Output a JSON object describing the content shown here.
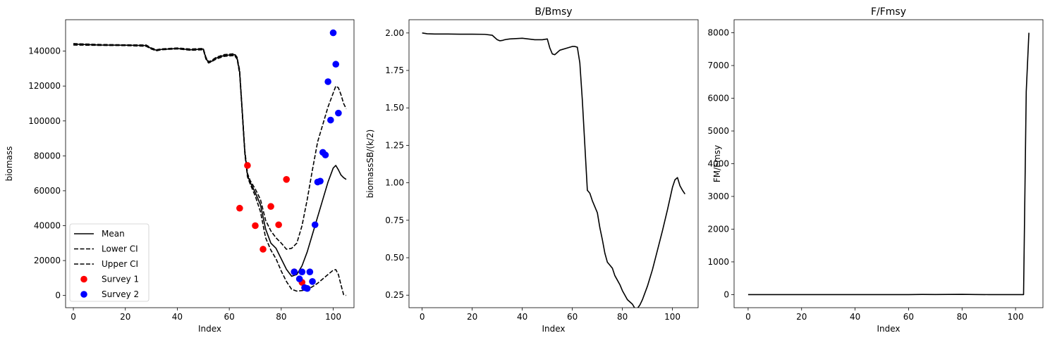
{
  "chart_data": [
    {
      "type": "line",
      "title": "",
      "xlabel": "Index",
      "ylabel": "biomass",
      "xlim": [
        -3,
        108
      ],
      "ylim": [
        -7000,
        158000
      ],
      "xticks": [
        0,
        20,
        40,
        60,
        80,
        100
      ],
      "yticks": [
        0,
        20000,
        40000,
        60000,
        80000,
        100000,
        120000,
        140000
      ],
      "legend": "lower-left",
      "series": [
        {
          "name": "Mean",
          "kind": "line",
          "style": "solid",
          "color": "#000000",
          "x": [
            0,
            10,
            20,
            28,
            30,
            32,
            34,
            40,
            45,
            50,
            51,
            52,
            53,
            55,
            58,
            62,
            63,
            64,
            65,
            66,
            67,
            68,
            70,
            72,
            74,
            76,
            78,
            80,
            82,
            84,
            86,
            88,
            90,
            92,
            94,
            96,
            98,
            100,
            101,
            102,
            103,
            104,
            105
          ],
          "y": [
            144000,
            143500,
            143400,
            143200,
            141500,
            140500,
            141000,
            141500,
            140800,
            141200,
            136000,
            133500,
            134000,
            136000,
            137500,
            138000,
            136000,
            128000,
            105000,
            82000,
            69000,
            65000,
            59000,
            52000,
            38000,
            30000,
            27000,
            21000,
            15000,
            11000,
            12000,
            17000,
            25000,
            35000,
            45000,
            55000,
            65000,
            73000,
            74500,
            72000,
            69000,
            67500,
            66500
          ]
        },
        {
          "name": "Lower CI",
          "kind": "line",
          "style": "dashed",
          "color": "#000000",
          "x": [
            0,
            10,
            20,
            28,
            30,
            32,
            34,
            40,
            45,
            50,
            51,
            52,
            53,
            55,
            58,
            62,
            63,
            64,
            65,
            66,
            67,
            68,
            70,
            72,
            74,
            76,
            78,
            80,
            82,
            84,
            86,
            88,
            90,
            92,
            94,
            96,
            98,
            100,
            101,
            102,
            103,
            104,
            105
          ],
          "y": [
            143500,
            143300,
            143200,
            142800,
            141200,
            140200,
            140800,
            141300,
            140500,
            140800,
            135500,
            133200,
            133800,
            135500,
            137000,
            137500,
            135500,
            127000,
            104000,
            81000,
            68000,
            64000,
            57000,
            48000,
            33000,
            26000,
            21000,
            14000,
            8000,
            3500,
            2500,
            2800,
            3500,
            5000,
            7000,
            9500,
            12000,
            14500,
            14800,
            12000,
            6000,
            500,
            0
          ]
        },
        {
          "name": "Upper CI",
          "kind": "line",
          "style": "dashed",
          "color": "#000000",
          "x": [
            0,
            10,
            20,
            28,
            30,
            32,
            34,
            40,
            45,
            50,
            51,
            52,
            53,
            55,
            58,
            62,
            63,
            64,
            65,
            66,
            67,
            68,
            70,
            72,
            74,
            76,
            78,
            80,
            82,
            84,
            86,
            88,
            90,
            92,
            94,
            96,
            98,
            100,
            101,
            102,
            103,
            104,
            105
          ],
          "y": [
            144300,
            143800,
            143600,
            143500,
            141800,
            140800,
            141300,
            141800,
            141200,
            141500,
            136500,
            134000,
            134500,
            136500,
            138000,
            138500,
            136500,
            129000,
            106000,
            83000,
            70000,
            66000,
            61000,
            55000,
            43000,
            37000,
            33000,
            30000,
            26500,
            27000,
            30000,
            40000,
            55000,
            72000,
            88000,
            98000,
            108000,
            116000,
            120000,
            119000,
            115000,
            110000,
            107000
          ]
        },
        {
          "name": "Survey 1",
          "kind": "scatter",
          "color": "#ff0000",
          "x": [
            64,
            67,
            70,
            73,
            76,
            79,
            82,
            85,
            88
          ],
          "y": [
            50000,
            74500,
            40000,
            26500,
            51000,
            40500,
            66500,
            13500,
            7500
          ]
        },
        {
          "name": "Survey 2",
          "kind": "scatter",
          "color": "#0000ff",
          "x": [
            85,
            87,
            88,
            89,
            90,
            91,
            92,
            93,
            94,
            95,
            96,
            97,
            98,
            99,
            100,
            101,
            102
          ],
          "y": [
            13500,
            9500,
            13500,
            4500,
            4000,
            13500,
            8000,
            40500,
            65000,
            65500,
            82000,
            80500,
            122500,
            100500,
            150500,
            132500,
            104500
          ]
        }
      ]
    },
    {
      "type": "line",
      "title": "B/Bmsy",
      "xlabel": "Index",
      "ylabel": "biomassSB/(k/2)",
      "xlim": [
        -5.25,
        110.25
      ],
      "ylim": [
        0.1665,
        2.0885
      ],
      "xticks": [
        0,
        20,
        40,
        60,
        80,
        100
      ],
      "yticks": [
        0.25,
        0.5,
        0.75,
        1.0,
        1.25,
        1.5,
        1.75,
        2.0
      ],
      "ytick_labels": [
        "0.25",
        "0.50",
        "0.75",
        "1.00",
        "1.25",
        "1.50",
        "1.75",
        "2.00"
      ],
      "series": [
        {
          "name": "",
          "kind": "line",
          "style": "solid",
          "color": "#000000",
          "x": [
            0,
            2,
            5,
            10,
            15,
            20,
            25,
            28,
            29,
            30,
            31,
            32,
            33,
            34,
            35,
            40,
            45,
            48,
            50,
            51,
            52,
            53,
            54,
            55,
            58,
            60,
            61,
            62,
            63,
            64,
            65,
            66,
            67,
            68,
            70,
            71,
            72,
            73,
            74,
            75,
            76,
            77,
            78,
            79,
            80,
            82,
            84,
            85,
            86,
            87,
            88,
            90,
            92,
            94,
            96,
            98,
            100,
            101,
            102,
            103,
            104,
            105
          ],
          "y": [
            2.0,
            1.995,
            1.993,
            1.993,
            1.992,
            1.992,
            1.991,
            1.985,
            1.97,
            1.955,
            1.948,
            1.95,
            1.955,
            1.958,
            1.96,
            1.965,
            1.955,
            1.955,
            1.96,
            1.9,
            1.86,
            1.855,
            1.87,
            1.885,
            1.9,
            1.91,
            1.91,
            1.905,
            1.8,
            1.55,
            1.25,
            0.95,
            0.93,
            0.88,
            0.8,
            0.7,
            0.62,
            0.53,
            0.47,
            0.45,
            0.43,
            0.38,
            0.35,
            0.32,
            0.28,
            0.22,
            0.19,
            0.162,
            0.162,
            0.185,
            0.22,
            0.31,
            0.42,
            0.55,
            0.68,
            0.82,
            0.97,
            1.02,
            1.035,
            0.98,
            0.95,
            0.925
          ]
        }
      ]
    },
    {
      "type": "line",
      "title": "F/Fmsy",
      "xlabel": "Index",
      "ylabel": "FM/Fmsy",
      "xlim": [
        -5.25,
        110.25
      ],
      "ylim": [
        -400,
        8400
      ],
      "xticks": [
        0,
        20,
        40,
        60,
        80,
        100
      ],
      "yticks": [
        0,
        1000,
        2000,
        3000,
        4000,
        5000,
        6000,
        7000,
        8000
      ],
      "series": [
        {
          "name": "",
          "kind": "line",
          "style": "solid",
          "color": "#000000",
          "x": [
            0,
            20,
            40,
            60,
            65,
            70,
            80,
            85,
            90,
            100,
            103,
            104,
            105
          ],
          "y": [
            0,
            0,
            0,
            0,
            5,
            2,
            8,
            2,
            0,
            0,
            0,
            6200,
            8000
          ]
        }
      ]
    }
  ]
}
